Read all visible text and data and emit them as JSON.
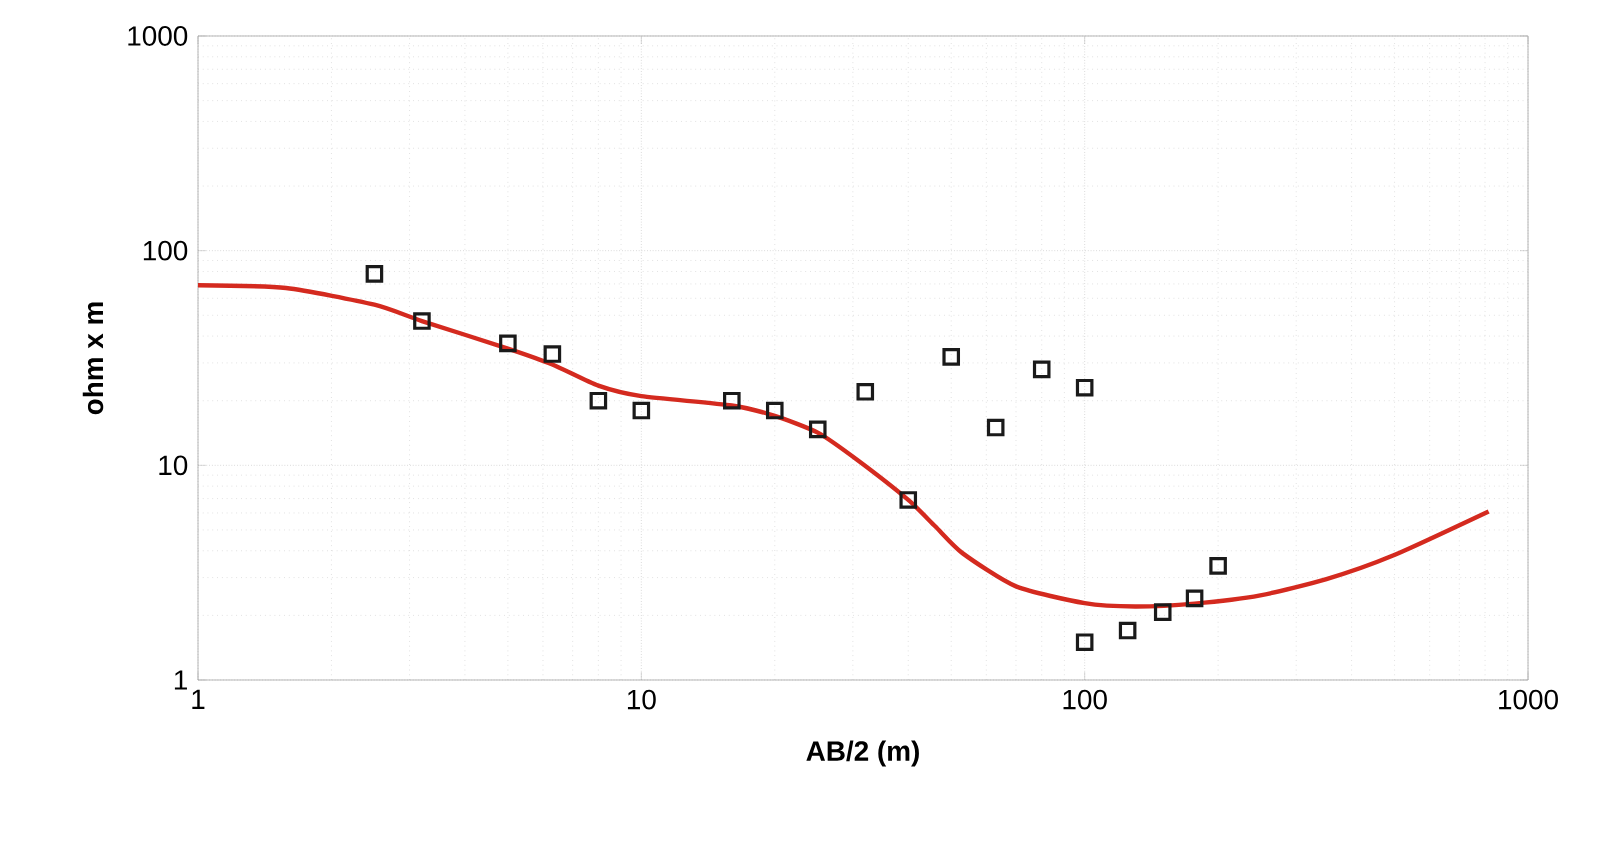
{
  "chart_data": {
    "type": "scatter",
    "xlabel": "AB/2 (m)",
    "ylabel": "ohm x m",
    "log": "xy",
    "grid": true,
    "marker": "square",
    "xlim": [
      1,
      1000
    ],
    "ylim": [
      1,
      1000
    ],
    "xticks": [
      1,
      10,
      100,
      1000
    ],
    "yticks": [
      1,
      10,
      100,
      1000
    ],
    "series": [
      {
        "color": "#1a1a1a",
        "x": [
          2.5,
          3.2,
          5,
          6.3,
          8,
          10,
          16,
          20,
          25,
          32,
          40,
          50,
          63,
          80,
          100,
          100,
          125,
          150,
          177,
          200
        ],
        "values": [
          78,
          47,
          37,
          33,
          20,
          18,
          20,
          18,
          14.7,
          22,
          6.9,
          32,
          15,
          28,
          23,
          1.5,
          1.7,
          2.07,
          2.4,
          3.4
        ]
      },
      {
        "type": "line",
        "color": "#d42a1f",
        "marker": "none",
        "line_style": "solid",
        "x": [
          1,
          1.58,
          2.5,
          3.2,
          5,
          6.3,
          8,
          10,
          16,
          20,
          25,
          30.5,
          40,
          46,
          53,
          70,
          100,
          130,
          177,
          249,
          351,
          496,
          815
        ],
        "values": [
          69,
          67,
          56,
          47,
          35,
          29.5,
          23.5,
          21,
          19,
          17,
          14.2,
          10.7,
          6.9,
          5.2,
          3.9,
          2.73,
          2.28,
          2.2,
          2.27,
          2.48,
          2.95,
          3.8,
          6.1
        ]
      }
    ]
  }
}
